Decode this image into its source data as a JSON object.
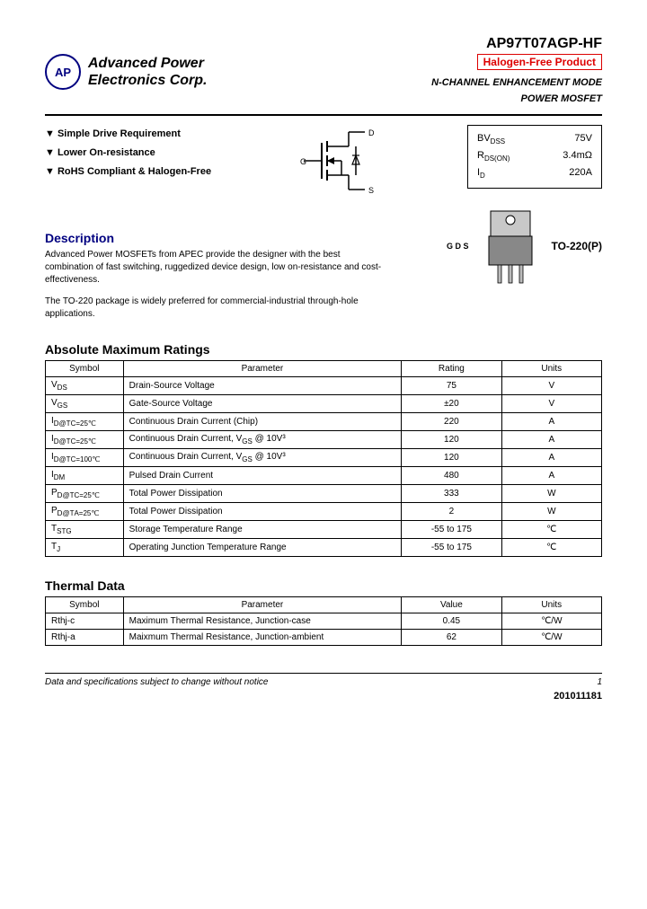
{
  "header": {
    "company_line1": "Advanced Power",
    "company_line2": "Electronics Corp.",
    "logo_text": "AP",
    "part_number": "AP97T07AGP-HF",
    "halogen_badge": "Halogen-Free Product",
    "mode_line1": "N-CHANNEL ENHANCEMENT MODE",
    "mode_line2": "POWER MOSFET"
  },
  "features": [
    "Simple Drive Requirement",
    "Lower On-resistance",
    "RoHS Compliant & Halogen-Free"
  ],
  "schematic_pins": {
    "g": "G",
    "d": "D",
    "s": "S"
  },
  "specbox": {
    "rows": [
      {
        "label": "BV",
        "sub": "DSS",
        "value": "75V"
      },
      {
        "label": "R",
        "sub": "DS(ON)",
        "value": "3.4mΩ"
      },
      {
        "label": "I",
        "sub": "D",
        "value": "220A"
      }
    ]
  },
  "package": {
    "label": "TO-220(P)",
    "pins": "G D S"
  },
  "description": {
    "title": "Description",
    "p1": "Advanced Power MOSFETs from APEC provide the designer with the best combination of fast switching, ruggedized device design, low on-resistance and cost-effectiveness.",
    "p2": "The TO-220 package is widely preferred for commercial-industrial through-hole applications."
  },
  "abs_max": {
    "title": "Absolute Maximum Ratings",
    "headers": [
      "Symbol",
      "Parameter",
      "Rating",
      "Units"
    ],
    "rows": [
      [
        "V_DS",
        "Drain-Source Voltage",
        "75",
        "V"
      ],
      [
        "V_GS",
        "Gate-Source Voltage",
        "±20",
        "V"
      ],
      [
        "I_D@T_C=25℃",
        "Continuous Drain Current (Chip)",
        "220",
        "A"
      ],
      [
        "I_D@T_C=25℃",
        "Continuous Drain Current, V_GS @ 10V³",
        "120",
        "A"
      ],
      [
        "I_D@T_C=100℃",
        "Continuous Drain Current, V_GS @ 10V³",
        "120",
        "A"
      ],
      [
        "I_DM",
        "Pulsed Drain Current",
        "480",
        "A"
      ],
      [
        "P_D@T_C=25℃",
        "Total Power Dissipation",
        "333",
        "W"
      ],
      [
        "P_D@T_A=25℃",
        "Total Power Dissipation",
        "2",
        "W"
      ],
      [
        "T_STG",
        "Storage Temperature Range",
        "-55 to 175",
        "℃"
      ],
      [
        "T_J",
        "Operating Junction Temperature Range",
        "-55 to 175",
        "℃"
      ]
    ]
  },
  "thermal": {
    "title": "Thermal Data",
    "headers": [
      "Symbol",
      "Parameter",
      "Value",
      "Units"
    ],
    "rows": [
      [
        "Rthj-c",
        "Maximum Thermal Resistance, Junction-case",
        "0.45",
        "℃/W"
      ],
      [
        "Rthj-a",
        "Maixmum Thermal Resistance, Junction-ambient",
        "62",
        "℃/W"
      ]
    ]
  },
  "footer": {
    "note": "Data and specifications subject to change without notice",
    "page": "1",
    "date": "201011181"
  },
  "colors": {
    "accent": "#000080",
    "badge": "#d00000",
    "text": "#000000",
    "border": "#000000"
  }
}
